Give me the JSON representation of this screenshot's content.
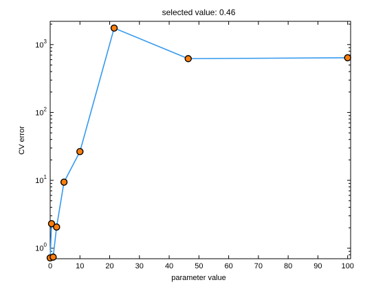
{
  "chart_data": {
    "type": "line",
    "title": "selected value: 0.46",
    "xlabel": "parameter value",
    "ylabel": "CV error",
    "xlim": [
      0,
      101
    ],
    "ylim": [
      0.7,
      2200
    ],
    "yscale": "log",
    "grid": false,
    "x_ticks": [
      0,
      10,
      20,
      30,
      40,
      50,
      60,
      70,
      80,
      90,
      100
    ],
    "x_tick_labels": [
      "0",
      "10",
      "20",
      "30",
      "40",
      "50",
      "60",
      "70",
      "80",
      "90",
      "100"
    ],
    "y_ticks": [
      1,
      10,
      100,
      1000
    ],
    "y_tick_labels": [
      {
        "base": "10",
        "exp": "0"
      },
      {
        "base": "10",
        "exp": "1"
      },
      {
        "base": "10",
        "exp": "2"
      },
      {
        "base": "10",
        "exp": "3"
      }
    ],
    "series": [
      {
        "color": "#3399ee",
        "marker_fill": "#ff7f0e",
        "x": [
          0.46,
          0.0,
          1.0,
          2.15,
          4.64,
          10.0,
          21.5,
          46.4,
          100.0
        ],
        "y": [
          2.3,
          0.72,
          0.74,
          2.05,
          9.4,
          26.5,
          1750,
          620,
          640
        ]
      }
    ]
  }
}
